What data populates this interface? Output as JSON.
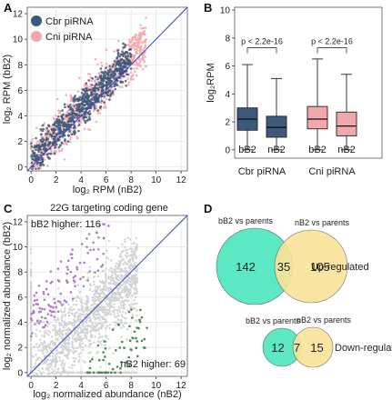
{
  "panels": {
    "a": {
      "letter": "A"
    },
    "b": {
      "letter": "B"
    },
    "c": {
      "letter": "C"
    },
    "d": {
      "letter": "D"
    }
  },
  "chart_data": [
    {
      "panel": "A",
      "type": "scatter",
      "xlabel": "log₂ RPM (nB2)",
      "ylabel": "log₂ RPM (bB2)",
      "xlim": [
        -0.3,
        12.5
      ],
      "ylim": [
        -0.3,
        12.5
      ],
      "xticks": [
        0,
        2,
        4,
        6,
        8,
        10,
        12
      ],
      "yticks": [
        0,
        2,
        4,
        6,
        8,
        10,
        12
      ],
      "grid": true,
      "legend_position": "top-left",
      "series": [
        {
          "name": "Cbr piRNA",
          "color": "#3d5a7a",
          "description_range": "0-8 both axes, along diagonal"
        },
        {
          "name": "Cni piRNA",
          "color": "#f2a7ab",
          "description_range": "0-9 both axes, along diagonal"
        }
      ],
      "reference_line": {
        "type": "y=x",
        "color": "#3344cc"
      }
    },
    {
      "panel": "B",
      "type": "box",
      "ylabel": "log₂RPM",
      "ylim": [
        -0.6,
        10.2
      ],
      "yticks": [
        0,
        2,
        4,
        6,
        8,
        10
      ],
      "groups": [
        "Cbr piRNA",
        "Cni piRNA"
      ],
      "box_labels": [
        "bB2",
        "nB2",
        "bB2",
        "nB2"
      ],
      "boxes": [
        {
          "group": "Cbr piRNA",
          "label": "bB2",
          "color": "#3d5a7a",
          "whisker_low": 0.0,
          "q1": 1.4,
          "median": 2.2,
          "q3": 3.0,
          "whisker_high": 6.1
        },
        {
          "group": "Cbr piRNA",
          "label": "nB2",
          "color": "#3d5a7a",
          "whisker_low": 0.0,
          "q1": 0.9,
          "median": 1.6,
          "q3": 2.4,
          "whisker_high": 5.1
        },
        {
          "group": "Cni piRNA",
          "label": "bB2",
          "color": "#f2a7ab",
          "whisker_low": 0.0,
          "q1": 1.5,
          "median": 2.2,
          "q3": 3.1,
          "whisker_high": 6.5
        },
        {
          "group": "Cni piRNA",
          "label": "nB2",
          "color": "#f2a7ab",
          "whisker_low": 0.0,
          "q1": 1.0,
          "median": 1.7,
          "q3": 2.7,
          "whisker_high": 5.4
        }
      ],
      "annotations": [
        "p < 2.2e-16",
        "p < 2.2e-16"
      ]
    },
    {
      "panel": "C",
      "type": "scatter",
      "title": "22G targeting coding gene",
      "xlabel": "log₂ normalized abundance (nB2)",
      "ylabel": "log₂ normalized abundance (bB2)",
      "xlim": [
        -0.3,
        12.5
      ],
      "ylim": [
        -0.3,
        12.5
      ],
      "xticks": [
        0,
        2,
        4,
        6,
        8,
        10,
        12
      ],
      "yticks": [
        0,
        2,
        4,
        6,
        8,
        10,
        12
      ],
      "grid": true,
      "series": [
        {
          "name": "bB2 higher: 116",
          "color": "#b07cc6",
          "count": 116
        },
        {
          "name": "nB2 higher: 69",
          "color": "#4d8a55",
          "count": 69
        },
        {
          "name": "other",
          "color": "#d3d3d3"
        }
      ],
      "reference_line": {
        "type": "y=x",
        "color": "#3344cc"
      }
    },
    {
      "panel": "D",
      "type": "venn",
      "diagrams": [
        {
          "label": "Up-regulated",
          "sets": [
            "bB2 vs parents",
            "nB2 vs parents"
          ],
          "only_left": 142,
          "intersection": 35,
          "only_right": 105,
          "colors": [
            "#5ce8c2",
            "#fbe39a"
          ]
        },
        {
          "label": "Down-regulated",
          "sets": [
            "bB2 vs parents",
            "nB2 vs parents"
          ],
          "only_left": 12,
          "intersection": 7,
          "only_right": 15,
          "colors": [
            "#5ce8c2",
            "#fbe39a"
          ]
        }
      ]
    }
  ]
}
